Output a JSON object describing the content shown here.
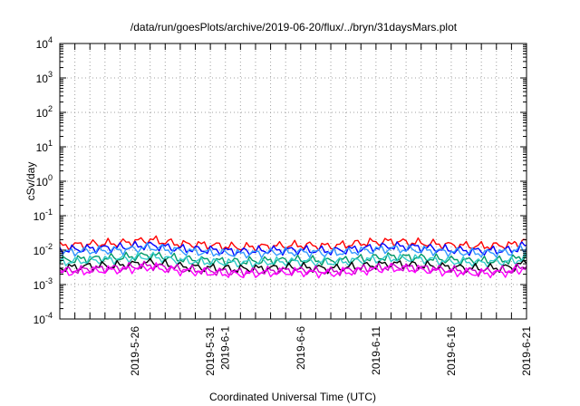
{
  "chart_data": {
    "type": "line",
    "title": "/data/run/goesPlots/archive/2019-06-20/flux/../bryn/31daysMars.plot",
    "xlabel": "Coordinated Universal Time (UTC)",
    "ylabel": "cSv/day",
    "yscale": "log",
    "ylim": [
      0.0001,
      10000
    ],
    "y_ticks": [
      {
        "value": 0.0001,
        "base": "10",
        "exp": "-4"
      },
      {
        "value": 0.001,
        "base": "10",
        "exp": "-3"
      },
      {
        "value": 0.01,
        "base": "10",
        "exp": "-2"
      },
      {
        "value": 0.1,
        "base": "10",
        "exp": "-1"
      },
      {
        "value": 1,
        "base": "10",
        "exp": "0"
      },
      {
        "value": 10,
        "base": "10",
        "exp": "1"
      },
      {
        "value": 100,
        "base": "10",
        "exp": "2"
      },
      {
        "value": 1000,
        "base": "10",
        "exp": "3"
      },
      {
        "value": 10000,
        "base": "10",
        "exp": "4"
      }
    ],
    "xlim": [
      "2019-05-21",
      "2019-06-21"
    ],
    "x_tick_labels": [
      "2019-5-26",
      "2019-5-31",
      "2019-6-1",
      "2019-6-6",
      "2019-6-11",
      "2019-6-16",
      "2019-6-21"
    ],
    "x_tick_dates": [
      "2019-05-26",
      "2019-05-31",
      "2019-06-01",
      "2019-06-06",
      "2019-06-11",
      "2019-06-16",
      "2019-06-21"
    ],
    "grid": true,
    "legend": "none",
    "series": [
      {
        "color": "#ff0000",
        "x": [
          "2019-05-21",
          "2019-05-23",
          "2019-05-25",
          "2019-05-27",
          "2019-05-29",
          "2019-05-31",
          "2019-06-02",
          "2019-06-04",
          "2019-06-06",
          "2019-06-08",
          "2019-06-10",
          "2019-06-12",
          "2019-06-14",
          "2019-06-16",
          "2019-06-18",
          "2019-06-20",
          "2019-06-21"
        ],
        "values": [
          0.013,
          0.015,
          0.016,
          0.02,
          0.015,
          0.014,
          0.012,
          0.013,
          0.014,
          0.013,
          0.016,
          0.018,
          0.016,
          0.014,
          0.013,
          0.014,
          0.02
        ]
      },
      {
        "color": "#0000ff",
        "x": [
          "2019-05-21",
          "2019-05-23",
          "2019-05-25",
          "2019-05-27",
          "2019-05-29",
          "2019-05-31",
          "2019-06-02",
          "2019-06-04",
          "2019-06-06",
          "2019-06-08",
          "2019-06-10",
          "2019-06-12",
          "2019-06-14",
          "2019-06-16",
          "2019-06-18",
          "2019-06-20",
          "2019-06-21"
        ],
        "values": [
          0.01,
          0.011,
          0.012,
          0.014,
          0.011,
          0.01,
          0.009,
          0.01,
          0.01,
          0.0095,
          0.011,
          0.013,
          0.012,
          0.01,
          0.0095,
          0.01,
          0.014
        ]
      },
      {
        "color": "#3399ff",
        "x": [
          "2019-05-21",
          "2019-05-23",
          "2019-05-25",
          "2019-05-27",
          "2019-05-29",
          "2019-05-31",
          "2019-06-02",
          "2019-06-04",
          "2019-06-06",
          "2019-06-08",
          "2019-06-10",
          "2019-06-12",
          "2019-06-14",
          "2019-06-16",
          "2019-06-18",
          "2019-06-20",
          "2019-06-21"
        ],
        "values": [
          0.0085,
          0.0095,
          0.01,
          0.012,
          0.0095,
          0.0085,
          0.0078,
          0.0085,
          0.0088,
          0.0082,
          0.0095,
          0.011,
          0.01,
          0.0088,
          0.0082,
          0.0088,
          0.012
        ]
      },
      {
        "color": "#009966",
        "x": [
          "2019-05-21",
          "2019-05-23",
          "2019-05-25",
          "2019-05-27",
          "2019-05-29",
          "2019-05-31",
          "2019-06-02",
          "2019-06-04",
          "2019-06-06",
          "2019-06-08",
          "2019-06-10",
          "2019-06-12",
          "2019-06-14",
          "2019-06-16",
          "2019-06-18",
          "2019-06-20",
          "2019-06-21"
        ],
        "values": [
          0.005,
          0.0056,
          0.006,
          0.0072,
          0.0056,
          0.005,
          0.0046,
          0.005,
          0.0052,
          0.0048,
          0.0056,
          0.0065,
          0.006,
          0.0052,
          0.0048,
          0.0052,
          0.007
        ]
      },
      {
        "color": "#33cccc",
        "x": [
          "2019-05-21",
          "2019-05-23",
          "2019-05-25",
          "2019-05-27",
          "2019-05-29",
          "2019-05-31",
          "2019-06-02",
          "2019-06-04",
          "2019-06-06",
          "2019-06-08",
          "2019-06-10",
          "2019-06-12",
          "2019-06-14",
          "2019-06-16",
          "2019-06-18",
          "2019-06-20",
          "2019-06-21"
        ],
        "values": [
          0.0045,
          0.005,
          0.0055,
          0.0065,
          0.005,
          0.0045,
          0.0042,
          0.0045,
          0.0047,
          0.0044,
          0.005,
          0.0058,
          0.0055,
          0.0047,
          0.0044,
          0.0047,
          0.0062
        ]
      },
      {
        "color": "#000000",
        "x": [
          "2019-05-21",
          "2019-05-23",
          "2019-05-25",
          "2019-05-27",
          "2019-05-29",
          "2019-05-31",
          "2019-06-02",
          "2019-06-04",
          "2019-06-06",
          "2019-06-08",
          "2019-06-10",
          "2019-06-12",
          "2019-06-14",
          "2019-06-16",
          "2019-06-18",
          "2019-06-20",
          "2019-06-21"
        ],
        "values": [
          0.003,
          0.0034,
          0.0036,
          0.0044,
          0.0034,
          0.003,
          0.0028,
          0.003,
          0.0032,
          0.0029,
          0.0034,
          0.004,
          0.0036,
          0.0032,
          0.0029,
          0.0032,
          0.0042
        ]
      },
      {
        "color": "#cc00cc",
        "x": [
          "2019-05-21",
          "2019-05-23",
          "2019-05-25",
          "2019-05-27",
          "2019-05-29",
          "2019-05-31",
          "2019-06-02",
          "2019-06-04",
          "2019-06-06",
          "2019-06-08",
          "2019-06-10",
          "2019-06-12",
          "2019-06-14",
          "2019-06-16",
          "2019-06-18",
          "2019-06-20",
          "2019-06-21"
        ],
        "values": [
          0.0025,
          0.0028,
          0.003,
          0.0036,
          0.0028,
          0.0025,
          0.0023,
          0.0025,
          0.0026,
          0.0024,
          0.0028,
          0.0033,
          0.003,
          0.0026,
          0.0024,
          0.0026,
          0.0035
        ]
      },
      {
        "color": "#ff00ff",
        "x": [
          "2019-05-21",
          "2019-05-23",
          "2019-05-25",
          "2019-05-27",
          "2019-05-29",
          "2019-05-31",
          "2019-06-02",
          "2019-06-04",
          "2019-06-06",
          "2019-06-08",
          "2019-06-10",
          "2019-06-12",
          "2019-06-14",
          "2019-06-16",
          "2019-06-18",
          "2019-06-20",
          "2019-06-21"
        ],
        "values": [
          0.0022,
          0.0025,
          0.0027,
          0.0032,
          0.0025,
          0.0022,
          0.002,
          0.0022,
          0.0023,
          0.0021,
          0.0025,
          0.003,
          0.0027,
          0.0023,
          0.0021,
          0.0023,
          0.0032
        ]
      }
    ]
  }
}
